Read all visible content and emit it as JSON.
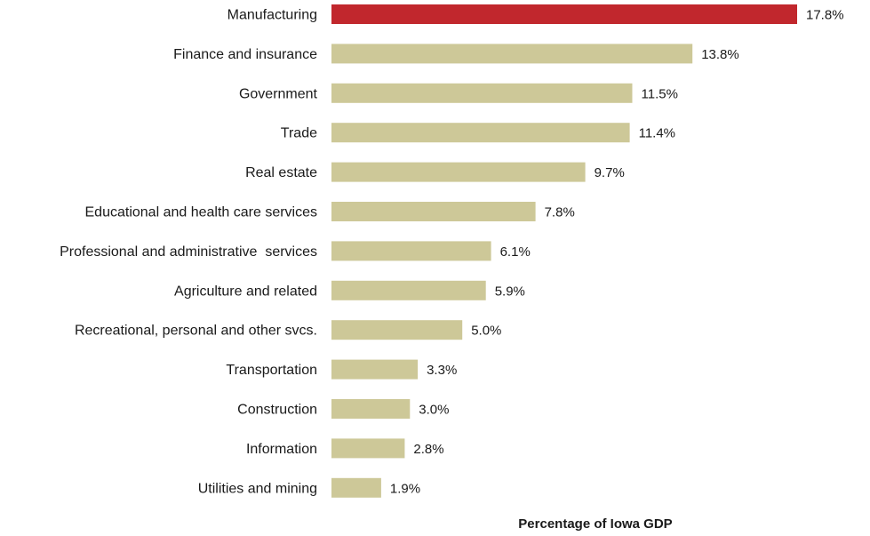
{
  "chart_data": {
    "type": "bar",
    "orientation": "horizontal",
    "title": "",
    "xlabel": "Percentage of Iowa GDP",
    "ylabel": "",
    "xlim": [
      0,
      17.8
    ],
    "grid": false,
    "legend": "none",
    "categories": [
      "Manufacturing",
      "Finance and insurance",
      "Government",
      "Trade",
      "Real estate",
      "Educational and health care services",
      "Professional and administrative  services",
      "Agriculture and related",
      "Recreational, personal and other svcs.",
      "Transportation",
      "Construction",
      "Information",
      "Utilities and mining"
    ],
    "values": [
      17.8,
      13.8,
      11.5,
      11.4,
      9.7,
      7.8,
      6.1,
      5.9,
      5.0,
      3.3,
      3.0,
      2.8,
      1.9
    ],
    "value_labels": [
      "17.8%",
      "13.8%",
      "11.5%",
      "11.4%",
      "9.7%",
      "7.8%",
      "6.1%",
      "5.9%",
      "5.0%",
      "3.3%",
      "3.0%",
      "2.8%",
      "1.9%"
    ],
    "colors": {
      "highlight": "#c1272d",
      "default": "#cdc898"
    },
    "highlight_category": "Manufacturing"
  }
}
